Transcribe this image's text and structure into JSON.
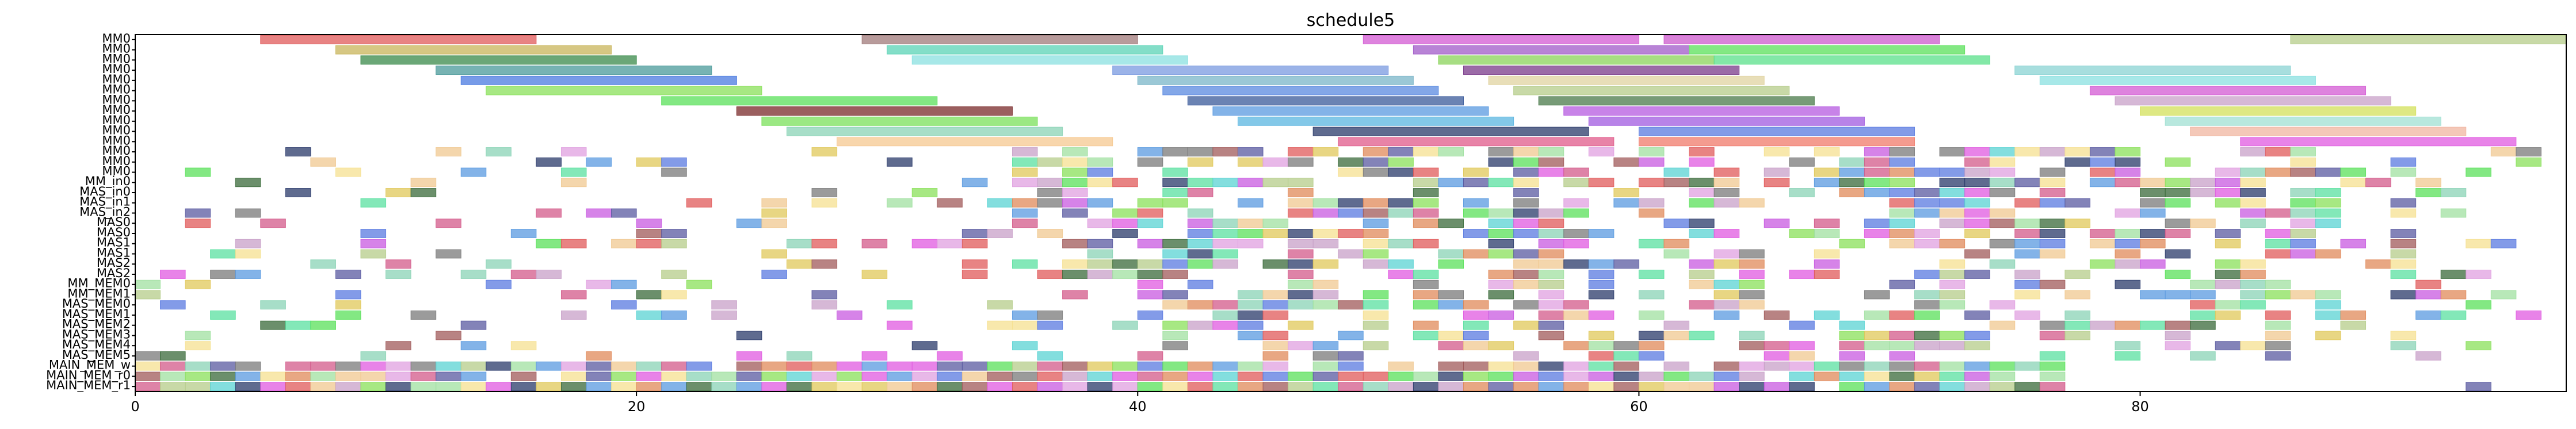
{
  "chart_data": {
    "type": "gantt",
    "title": "schedule5",
    "xlabel": "",
    "ylabel": "",
    "xlim": [
      0,
      97
    ],
    "x_ticks": [
      "0",
      "20",
      "40",
      "60",
      "80"
    ],
    "grid": false,
    "rows": [
      "MM0",
      "MM0",
      "MM0",
      "MM0",
      "MM0",
      "MM0",
      "MM0",
      "MM0",
      "MM0",
      "MM0",
      "MM0",
      "MM0",
      "MM0",
      "MM0",
      "MM_in0",
      "MAS_in0",
      "MAS_in1",
      "MAS_in2",
      "MAS0",
      "MAS0",
      "MAS1",
      "MAS1",
      "MAS2",
      "MAS2",
      "MM_MEM0",
      "MM_MEM1",
      "MAS_MEM0",
      "MAS_MEM1",
      "MAS_MEM2",
      "MAS_MEM3",
      "MAS_MEM4",
      "MAS_MEM5",
      "MAIN_MEM_w",
      "MAIN_MEM_r0",
      "MAIN_MEM_r1"
    ],
    "mm_bars": [
      {
        "row": 0,
        "start": 5,
        "end": 16,
        "color": "#e05a5a"
      },
      {
        "row": 0,
        "start": 29,
        "end": 40,
        "color": "#a07a7a"
      },
      {
        "row": 0,
        "start": 49,
        "end": 60,
        "color": "#d35ad3"
      },
      {
        "row": 0,
        "start": 61,
        "end": 72,
        "color": "#cc5acc"
      },
      {
        "row": 0,
        "start": 86,
        "end": 97,
        "color": "#b5cc8a"
      },
      {
        "row": 1,
        "start": 8,
        "end": 19,
        "color": "#c8b45a"
      },
      {
        "row": 1,
        "start": 30,
        "end": 41,
        "color": "#5ad3b5"
      },
      {
        "row": 1,
        "start": 51,
        "end": 62,
        "color": "#a05ac8"
      },
      {
        "row": 1,
        "start": 62,
        "end": 73,
        "color": "#5ae05a"
      },
      {
        "row": 2,
        "start": 9,
        "end": 20,
        "color": "#3a8a4a"
      },
      {
        "row": 2,
        "start": 31,
        "end": 42,
        "color": "#8ae0e0"
      },
      {
        "row": 2,
        "start": 52,
        "end": 63,
        "color": "#8ad35a"
      },
      {
        "row": 2,
        "start": 63,
        "end": 74,
        "color": "#5ae08a"
      },
      {
        "row": 3,
        "start": 12,
        "end": 23,
        "color": "#4a9a9a"
      },
      {
        "row": 3,
        "start": 39,
        "end": 50,
        "color": "#7a9ae0"
      },
      {
        "row": 3,
        "start": 53,
        "end": 64,
        "color": "#7a3a8a"
      },
      {
        "row": 3,
        "start": 75,
        "end": 86,
        "color": "#8ad3d3"
      },
      {
        "row": 4,
        "start": 13,
        "end": 24,
        "color": "#4a7ae0"
      },
      {
        "row": 4,
        "start": 40,
        "end": 51,
        "color": "#7ab5c8"
      },
      {
        "row": 4,
        "start": 54,
        "end": 65,
        "color": "#e0d3a0"
      },
      {
        "row": 4,
        "start": 76,
        "end": 87,
        "color": "#8ae0e0"
      },
      {
        "row": 5,
        "start": 14,
        "end": 25,
        "color": "#8ae05a"
      },
      {
        "row": 5,
        "start": 41,
        "end": 52,
        "color": "#5a8ae0"
      },
      {
        "row": 5,
        "start": 55,
        "end": 66,
        "color": "#b5cc8a"
      },
      {
        "row": 5,
        "start": 78,
        "end": 89,
        "color": "#d35ad3"
      },
      {
        "row": 6,
        "start": 21,
        "end": 32,
        "color": "#5ae05a"
      },
      {
        "row": 6,
        "start": 42,
        "end": 53,
        "color": "#3a5a9a"
      },
      {
        "row": 6,
        "start": 56,
        "end": 67,
        "color": "#4a7a4a"
      },
      {
        "row": 6,
        "start": 79,
        "end": 90,
        "color": "#c8a0c8"
      },
      {
        "row": 7,
        "start": 24,
        "end": 35,
        "color": "#7a2a2a"
      },
      {
        "row": 7,
        "start": 43,
        "end": 54,
        "color": "#5a9ae0"
      },
      {
        "row": 7,
        "start": 57,
        "end": 68,
        "color": "#b55ae0"
      },
      {
        "row": 7,
        "start": 80,
        "end": 91,
        "color": "#d3e05a"
      },
      {
        "row": 8,
        "start": 25,
        "end": 36,
        "color": "#7ae05a"
      },
      {
        "row": 8,
        "start": 44,
        "end": 55,
        "color": "#5ab5e0"
      },
      {
        "row": 8,
        "start": 58,
        "end": 69,
        "color": "#a05ae0"
      },
      {
        "row": 8,
        "start": 81,
        "end": 92,
        "color": "#a0e0d3"
      },
      {
        "row": 9,
        "start": 26,
        "end": 37,
        "color": "#8ad3b5"
      },
      {
        "row": 9,
        "start": 47,
        "end": 58,
        "color": "#2a3a6a"
      },
      {
        "row": 9,
        "start": 60,
        "end": 71,
        "color": "#5a7ae0"
      },
      {
        "row": 9,
        "start": 82,
        "end": 93,
        "color": "#f0b5a0"
      },
      {
        "row": 10,
        "start": 28,
        "end": 39,
        "color": "#f5c890"
      },
      {
        "row": 10,
        "start": 48,
        "end": 59,
        "color": "#e05a8a"
      },
      {
        "row": 10,
        "start": 60,
        "end": 71,
        "color": "#f07a6a"
      },
      {
        "row": 10,
        "start": 84,
        "end": 95,
        "color": "#e05ae0"
      }
    ],
    "small_rows_from": 11,
    "small_rows_to": 34,
    "small_box_width": 1
  }
}
